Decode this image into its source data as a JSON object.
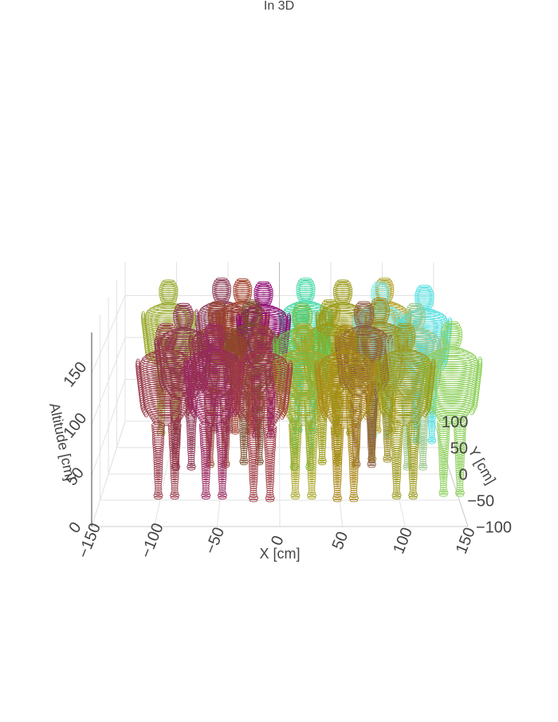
{
  "chart_data": {
    "type": "3d-contour-figures",
    "title": "In 3D",
    "axes": {
      "x": {
        "label": "X [cm]",
        "ticks": [
          -150,
          -100,
          -50,
          0,
          50,
          100,
          150
        ],
        "tick_labels": [
          "−150",
          "−100",
          "−50",
          "0",
          "50",
          "100",
          "150"
        ]
      },
      "y": {
        "label": "Y [cm]",
        "ticks": [
          -100,
          -50,
          0,
          50,
          100
        ],
        "tick_labels": [
          "−100",
          "−50",
          "0",
          "50",
          "100"
        ]
      },
      "z": {
        "label": "Altitude [cm]",
        "ticks": [
          0,
          50,
          100,
          150
        ],
        "tick_labels": [
          "0",
          "50",
          "100",
          "150"
        ]
      }
    },
    "grid": true,
    "figure_height_cm": 180,
    "figures": [
      {
        "x": -105,
        "y": 75,
        "color": "#9aaa2e"
      },
      {
        "x": -55,
        "y": 80,
        "color": "#8a3a55"
      },
      {
        "x": -35,
        "y": 78,
        "color": "#a0402a"
      },
      {
        "x": -15,
        "y": 70,
        "color": "#8f0a72"
      },
      {
        "x": 25,
        "y": 80,
        "color": "#45d8a8"
      },
      {
        "x": 60,
        "y": 75,
        "color": "#9a9a1a"
      },
      {
        "x": 100,
        "y": 80,
        "color": "#b0a020"
      },
      {
        "x": 95,
        "y": 70,
        "color": "#8be6e0"
      },
      {
        "x": 135,
        "y": 60,
        "color": "#50dede"
      },
      {
        "x": -85,
        "y": 10,
        "color": "#8a3050"
      },
      {
        "x": -55,
        "y": 15,
        "color": "#96442a"
      },
      {
        "x": -25,
        "y": 20,
        "color": "#7a5030"
      },
      {
        "x": 20,
        "y": 10,
        "color": "#6cc04a"
      },
      {
        "x": 45,
        "y": 20,
        "color": "#9a9a14"
      },
      {
        "x": 75,
        "y": 15,
        "color": "#8a5a40"
      },
      {
        "x": 90,
        "y": 25,
        "color": "#9a8a1e"
      },
      {
        "x": 120,
        "y": 10,
        "color": "#9ac68a"
      },
      {
        "x": -95,
        "y": -45,
        "color": "#983a48"
      },
      {
        "x": -55,
        "y": -45,
        "color": "#9a2860"
      },
      {
        "x": -15,
        "y": -50,
        "color": "#a03c44"
      },
      {
        "x": 20,
        "y": -45,
        "color": "#a8a82a"
      },
      {
        "x": 55,
        "y": -50,
        "color": "#aa8818"
      },
      {
        "x": 105,
        "y": -45,
        "color": "#9c9a1a"
      },
      {
        "x": 145,
        "y": -40,
        "color": "#8ccf5a"
      }
    ]
  }
}
